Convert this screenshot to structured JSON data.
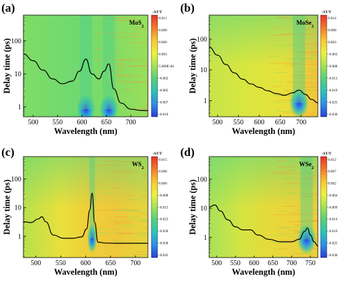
{
  "chart_data": [
    {
      "type": "heatmap",
      "panel": "(a)",
      "material": "MoS",
      "material_sub": "2",
      "xlabel": "Wavelength (nm)",
      "ylabel": "Delay time (ps)",
      "xlim": [
        480,
        735
      ],
      "ylim": [
        0.5,
        600
      ],
      "y_scale": "log",
      "x_ticks": [
        "500",
        "550",
        "600",
        "650",
        "700"
      ],
      "y_ticks": [
        "1",
        "10",
        "100"
      ],
      "colorbar_title": "-ΔT/T",
      "colorbar_ticks": [
        "0.011",
        "0.008",
        "0.006",
        "0.003",
        "5.000E-04",
        "-0.002",
        "-0.005",
        "-0.007",
        "-0.010"
      ],
      "bleach_peaks_nm": [
        608,
        655
      ],
      "absorption_curve": {
        "x": [
          480,
          500,
          520,
          540,
          560,
          580,
          595,
          608,
          620,
          635,
          645,
          655,
          665,
          680,
          700,
          720,
          735
        ],
        "y": [
          40,
          25,
          13,
          7,
          5,
          6,
          12,
          28,
          10,
          7,
          12,
          20,
          3.5,
          1.3,
          0.85,
          0.78,
          0.77
        ]
      }
    },
    {
      "type": "heatmap",
      "panel": "(b)",
      "material": "MoSe",
      "material_sub": "2",
      "xlabel": "Wavelength (nm)",
      "ylabel": "Delay time (ps)",
      "xlim": [
        480,
        740
      ],
      "ylim": [
        0.3,
        600
      ],
      "y_scale": "log",
      "x_ticks": [
        "500",
        "550",
        "600",
        "650",
        "700"
      ],
      "y_ticks": [
        "1",
        "10",
        "100"
      ],
      "colorbar_title": "-ΔT/T",
      "colorbar_ticks": [
        "0.014",
        "0.008",
        "0.003",
        "-0.003",
        "-0.008",
        "-0.013",
        "-0.019",
        "-0.025",
        "-0.030"
      ],
      "bleach_peaks_nm": [
        695
      ],
      "absorption_curve": {
        "x": [
          480,
          500,
          520,
          540,
          560,
          580,
          600,
          620,
          640,
          660,
          680,
          695,
          710,
          725,
          740
        ],
        "y": [
          55,
          30,
          15,
          8,
          5,
          3.5,
          2.7,
          2.1,
          1.7,
          1.5,
          1.8,
          2.2,
          1.6,
          1.1,
          0.85
        ]
      }
    },
    {
      "type": "heatmap",
      "panel": "(c)",
      "material": "WS",
      "material_sub": "2",
      "xlabel": "Wavelength (nm)",
      "ylabel": "Delay time (ps)",
      "xlim": [
        475,
        725
      ],
      "ylim": [
        0.18,
        600
      ],
      "y_scale": "log",
      "x_ticks": [
        "500",
        "550",
        "600",
        "650",
        "700"
      ],
      "y_ticks": [
        "1",
        "10",
        "100"
      ],
      "colorbar_title": "-ΔT/T",
      "colorbar_ticks": [
        "0.015",
        "0.008",
        "0.000",
        "-0.008",
        "-0.015",
        "-0.023",
        "-0.030",
        "-0.038",
        "-0.045"
      ],
      "bleach_peaks_nm": [
        613
      ],
      "absorption_curve": {
        "x": [
          475,
          490,
          505,
          512,
          520,
          535,
          555,
          575,
          592,
          602,
          608,
          613,
          618,
          625,
          640,
          660,
          690,
          725
        ],
        "y": [
          3.2,
          3,
          4,
          4.8,
          3.2,
          1.1,
          0.85,
          0.85,
          0.95,
          1.8,
          8,
          32,
          3,
          0.62,
          0.58,
          0.57,
          0.57,
          0.57
        ]
      }
    },
    {
      "type": "heatmap",
      "panel": "(d)",
      "material": "WSe",
      "material_sub": "2",
      "xlabel": "Wavelength (nm)",
      "ylabel": "Delay time (ps)",
      "xlim": [
        480,
        770
      ],
      "ylim": [
        0.2,
        600
      ],
      "y_scale": "log",
      "x_ticks": [
        "500",
        "550",
        "600",
        "650",
        "700",
        "750"
      ],
      "y_ticks": [
        "1",
        "10",
        "100"
      ],
      "colorbar_title": "-ΔT/T",
      "colorbar_ticks": [
        "0.012",
        "0.007",
        "0.002",
        "-0.004",
        "-0.009",
        "-0.014",
        "-0.019",
        "-0.025",
        "-0.030"
      ],
      "bleach_peaks_nm": [
        740
      ],
      "absorption_curve": {
        "x": [
          480,
          495,
          510,
          530,
          550,
          570,
          590,
          610,
          640,
          670,
          700,
          720,
          735,
          742,
          750,
          760,
          770
        ],
        "y": [
          11,
          13,
          8,
          4,
          2.3,
          1.8,
          1.8,
          1.2,
          0.85,
          0.7,
          0.7,
          0.85,
          1.6,
          2.1,
          1.2,
          0.7,
          0.5
        ]
      }
    }
  ]
}
